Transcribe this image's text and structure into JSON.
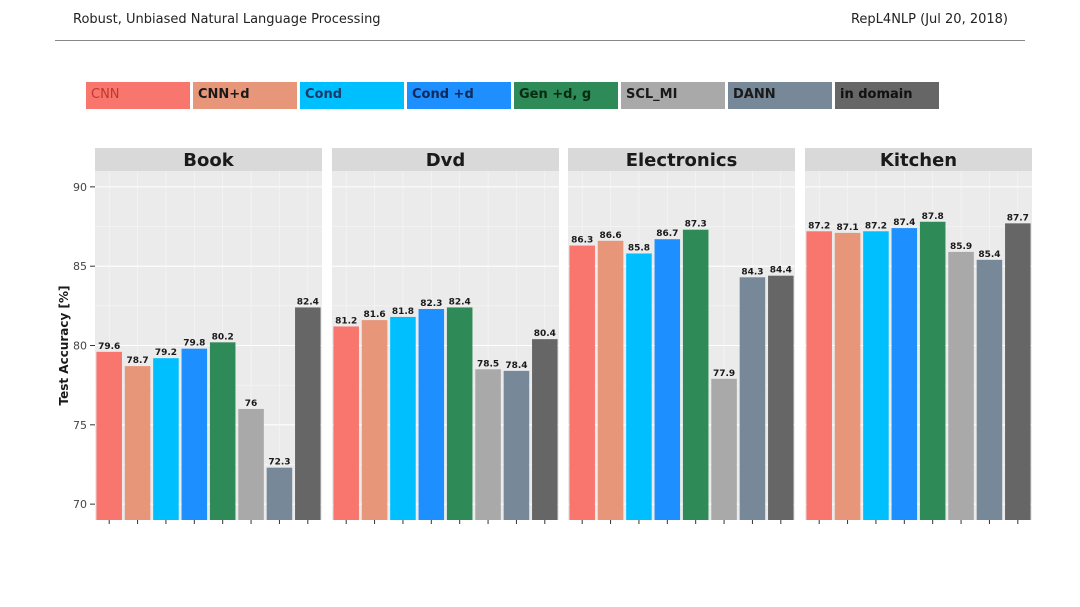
{
  "header": {
    "left": "Robust, Unbiased Natural Language Processing",
    "right": "RepL4NLP (Jul 20, 2018)"
  },
  "legend": [
    {
      "label": "CNN",
      "color": "#F8766D",
      "text_color": "#c0392b",
      "bold": false
    },
    {
      "label": "CNN+d",
      "color": "#E7967A",
      "text_color": "#1a1a1a",
      "bold": true
    },
    {
      "label": "Cond",
      "color": "#00BFFF",
      "text_color": "#1a3a6a",
      "bold": true
    },
    {
      "label": "Cond +d",
      "color": "#1E8FFF",
      "text_color": "#102a5a",
      "bold": true
    },
    {
      "label": "Gen +d, g",
      "color": "#2E8B57",
      "text_color": "#0a2a14",
      "bold": true
    },
    {
      "label": "SCL_MI",
      "color": "#A9A9A9",
      "text_color": "#1a1a1a",
      "bold": true
    },
    {
      "label": "DANN",
      "color": "#778899",
      "text_color": "#1a1a1a",
      "bold": true
    },
    {
      "label": "in domain",
      "color": "#666666",
      "text_color": "#111111",
      "bold": true
    }
  ],
  "chart_data": {
    "type": "bar",
    "ylabel": "Test Accuracy [%]",
    "ylim": [
      69,
      91
    ],
    "yticks": [
      70,
      75,
      80,
      85,
      90
    ],
    "series_names": [
      "CNN",
      "CNN+d",
      "Cond",
      "Cond +d",
      "Gen +d, g",
      "SCL_MI",
      "DANN",
      "in domain"
    ],
    "colors": [
      "#F8766D",
      "#E7967A",
      "#00BFFF",
      "#1E8FFF",
      "#2E8B57",
      "#A9A9A9",
      "#778899",
      "#666666"
    ],
    "facets": [
      {
        "title": "Book",
        "values": [
          79.6,
          78.7,
          79.2,
          79.8,
          80.2,
          76,
          72.3,
          82.4
        ]
      },
      {
        "title": "Dvd",
        "values": [
          81.2,
          81.6,
          81.8,
          82.3,
          82.4,
          78.5,
          78.4,
          80.4
        ]
      },
      {
        "title": "Electronics",
        "values": [
          86.3,
          86.6,
          85.8,
          86.7,
          87.3,
          77.9,
          84.3,
          84.4
        ]
      },
      {
        "title": "Kitchen",
        "values": [
          87.2,
          87.1,
          87.2,
          87.4,
          87.8,
          85.9,
          85.4,
          87.7
        ]
      }
    ]
  }
}
